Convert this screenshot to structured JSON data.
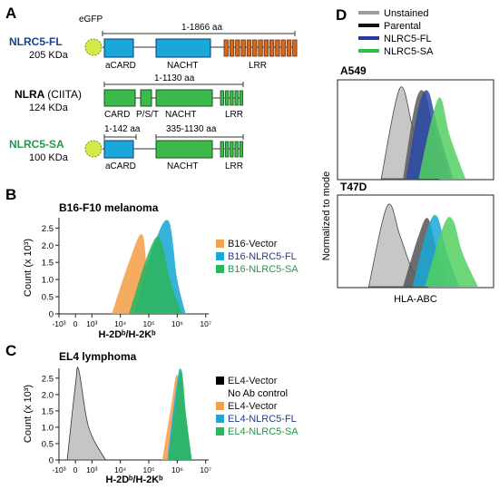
{
  "figure": {
    "panels": {
      "A": "A",
      "B": "B",
      "C": "C",
      "D": "D"
    }
  },
  "panelA": {
    "egfp_label": "eGFP",
    "proteins": [
      {
        "name": "NLRC5-FL",
        "size": "205 KDa",
        "name_color": "#1c3f94",
        "range_label": "1-1866 aa",
        "domains": [
          {
            "label": "aCARD",
            "color": "#1aa7d9"
          },
          {
            "label": "NACHT",
            "color": "#1aa7d9"
          },
          {
            "label": "LRR",
            "color": "#d2691e"
          }
        ]
      },
      {
        "name": "NLRA",
        "name_suffix": "(CIITA)",
        "size": "124 KDa",
        "name_color": "#111111",
        "range_label": "1-1130 aa",
        "domains": [
          {
            "label": "CARD",
            "color": "#3cb94a"
          },
          {
            "label": "P/S/T",
            "color": "#3cb94a"
          },
          {
            "label": "NACHT",
            "color": "#3cb94a"
          },
          {
            "label": "LRR",
            "color": "#3cb94a"
          }
        ]
      },
      {
        "name": "NLRC5-SA",
        "size": "100 KDa",
        "name_color": "#1f9a48",
        "range_labels": [
          "1-142 aa",
          "335-1130 aa"
        ],
        "domains": [
          {
            "label": "aCARD",
            "color": "#1aa7d9"
          },
          {
            "label": "NACHT",
            "color": "#3cb94a"
          },
          {
            "label": "LRR",
            "color": "#3cb94a"
          }
        ]
      }
    ]
  },
  "chart_data": [
    {
      "panel": "B",
      "type": "area",
      "title": "B16-F10 melanoma",
      "xlabel": "H-2Dᵇ/H-2Kᵇ",
      "ylabel": "Count (x 10³)",
      "x_scale": "log",
      "x_ticks": [
        "-10³",
        "0",
        "10³",
        "10⁴",
        "10⁵",
        "10⁶",
        "10⁷"
      ],
      "y_ticks": [
        "0",
        "0.5",
        "1.0",
        "1.5",
        "2.0",
        "2.5"
      ],
      "ylim": [
        0,
        2.8
      ],
      "legend": "right",
      "series": [
        {
          "name": "B16-Vector",
          "color": "#f5a04a",
          "x": [
            5000,
            20000,
            60000,
            100000,
            200000
          ],
          "y": [
            0.0,
            1.5,
            2.3,
            0.6,
            0.0
          ]
        },
        {
          "name": "B16-NLRC5-FL",
          "color": "#1aa8d6",
          "name_color": "#1c3f94",
          "x": [
            30000,
            150000,
            500000,
            1000000,
            2000000
          ],
          "y": [
            0.0,
            2.0,
            2.7,
            1.0,
            0.0
          ]
        },
        {
          "name": "B16-NLRC5-SA",
          "color": "#2db55d",
          "name_color": "#1f9a48",
          "x": [
            20000,
            100000,
            250000,
            600000,
            1500000
          ],
          "y": [
            0.0,
            1.8,
            2.2,
            0.9,
            0.0
          ]
        }
      ]
    },
    {
      "panel": "C",
      "type": "area",
      "title": "EL4 lymphoma",
      "xlabel": "H-2Dᵇ/H-2Kᵇ",
      "ylabel": "Count (x 10³)",
      "x_scale": "log",
      "x_ticks": [
        "-10³",
        "0",
        "10³",
        "10⁴",
        "10⁵",
        "10⁶",
        "10⁷"
      ],
      "y_ticks": [
        "0",
        "0.5",
        "1.0",
        "1.5",
        "2.0",
        "2.5"
      ],
      "ylim": [
        0,
        2.8
      ],
      "legend": "right",
      "series": [
        {
          "name": "EL4-Vector",
          "name_line2": "No Ab control",
          "color": "#bdbdbd",
          "legend_color": "#000000",
          "x": [
            -500,
            0,
            200,
            800,
            3000
          ],
          "y": [
            0.0,
            2.3,
            2.75,
            1.0,
            0.0
          ]
        },
        {
          "name": "EL4-Vector",
          "color": "#f5a04a",
          "x": [
            300000,
            600000,
            1000000,
            1600000,
            2500000
          ],
          "y": [
            0.0,
            1.6,
            2.6,
            1.2,
            0.0
          ]
        },
        {
          "name": "EL4-NLRC5-FL",
          "color": "#1aa8d6",
          "name_color": "#1c3f94",
          "x": [
            450000,
            800000,
            1300000,
            2000000,
            3200000
          ],
          "y": [
            0.0,
            1.8,
            2.8,
            1.4,
            0.0
          ]
        },
        {
          "name": "EL4-NLRC5-SA",
          "color": "#2db55d",
          "name_color": "#1f9a48",
          "x": [
            500000,
            900000,
            1400000,
            2100000,
            3300000
          ],
          "y": [
            0.0,
            1.7,
            2.75,
            1.3,
            0.0
          ]
        }
      ]
    },
    {
      "panel": "D",
      "type": "area",
      "xlabel": "HLA-ABC",
      "ylabel": "Normalized to mode",
      "legend": "top-left",
      "legend_entries": [
        {
          "name": "Unstained",
          "color": "#9e9e9e"
        },
        {
          "name": "Parental",
          "color": "#111111"
        },
        {
          "name": "NLRC5-FL",
          "color": "#23399b"
        },
        {
          "name": "NLRC5-SA",
          "color": "#2ec24a"
        }
      ],
      "subplots": [
        {
          "title": "A549",
          "series": [
            {
              "name": "Unstained",
              "color": "#bdbdbd",
              "x": [
                0.28,
                0.4,
                0.48,
                0.55,
                0.65
              ],
              "y": [
                0,
                0.95,
                0.55,
                0.2,
                0
              ]
            },
            {
              "name": "Parental",
              "color": "#5a5a5a",
              "x": [
                0.42,
                0.5,
                0.56,
                0.62,
                0.72
              ],
              "y": [
                0,
                0.8,
                0.9,
                0.5,
                0
              ]
            },
            {
              "name": "NLRC5-FL",
              "color": "#2a4aa6",
              "x": [
                0.44,
                0.52,
                0.58,
                0.64,
                0.74
              ],
              "y": [
                0,
                0.75,
                0.92,
                0.55,
                0
              ]
            },
            {
              "name": "NLRC5-SA",
              "color": "#52cf60",
              "x": [
                0.52,
                0.6,
                0.66,
                0.72,
                0.82
              ],
              "y": [
                0,
                0.6,
                0.85,
                0.45,
                0
              ]
            }
          ]
        },
        {
          "title": "T47D",
          "series": [
            {
              "name": "Unstained",
              "color": "#bdbdbd",
              "x": [
                0.2,
                0.32,
                0.4,
                0.48,
                0.58
              ],
              "y": [
                0,
                0.95,
                0.6,
                0.2,
                0
              ]
            },
            {
              "name": "Parental",
              "color": "#555555",
              "x": [
                0.42,
                0.52,
                0.58,
                0.64,
                0.72
              ],
              "y": [
                0,
                0.6,
                0.8,
                0.4,
                0
              ]
            },
            {
              "name": "NLRC5-FL",
              "color": "#1aa8d6",
              "x": [
                0.48,
                0.58,
                0.64,
                0.7,
                0.78
              ],
              "y": [
                0,
                0.7,
                0.82,
                0.4,
                0
              ]
            },
            {
              "name": "NLRC5-SA",
              "color": "#52cf60",
              "x": [
                0.56,
                0.68,
                0.74,
                0.8,
                0.9
              ],
              "y": [
                0,
                0.72,
                0.78,
                0.4,
                0
              ]
            }
          ]
        }
      ]
    }
  ]
}
